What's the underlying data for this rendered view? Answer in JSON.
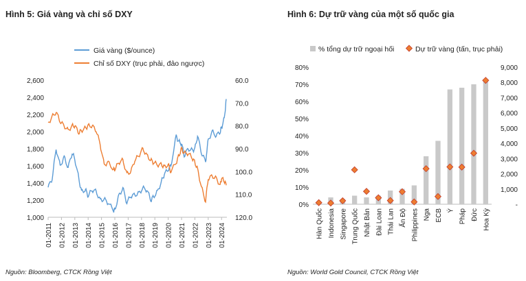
{
  "left_chart": {
    "title": "Hình 5: Giá vàng và chỉ số DXY",
    "source": "Nguồn: Bloomberg, CTCK Rồng Việt"
  },
  "right_chart": {
    "title": "Hình 6: Dự trữ vàng của một số quốc gia",
    "source": "Nguồn: World Gold Council, CTCK Rồng Việt"
  },
  "chart_data": [
    {
      "type": "line",
      "title": "Hình 5: Giá vàng và chỉ số DXY",
      "x_ticks": [
        "01-2011",
        "01-2012",
        "01-2013",
        "01-2014",
        "01-2015",
        "01-2016",
        "01-2017",
        "01-2018",
        "01-2019",
        "01-2020",
        "01-2021",
        "01-2022",
        "01-2023",
        "01-2024"
      ],
      "y_left": {
        "ylim": [
          1000,
          2600
        ],
        "ticks": [
          "2,600",
          "2,400",
          "2,200",
          "2,000",
          "1,800",
          "1,600",
          "1,400",
          "1,200",
          "1,000"
        ]
      },
      "y_right": {
        "ylim": [
          60,
          120
        ],
        "reversed": true,
        "ticks": [
          "60.0",
          "70.0",
          "80.0",
          "90.0",
          "100.0",
          "110.0",
          "120.0"
        ]
      },
      "legend_position": "top-center",
      "series": [
        {
          "name": "Giá vàng ($/ounce)",
          "axis": "left",
          "color": "#5b9bd5",
          "x": [
            2011.0,
            2011.3,
            2011.6,
            2011.9,
            2012.2,
            2012.5,
            2012.8,
            2013.0,
            2013.3,
            2013.5,
            2013.8,
            2014.0,
            2014.3,
            2014.6,
            2014.9,
            2015.2,
            2015.5,
            2015.9,
            2016.0,
            2016.3,
            2016.6,
            2016.9,
            2017.2,
            2017.5,
            2017.8,
            2018.1,
            2018.4,
            2018.7,
            2018.9,
            2019.2,
            2019.5,
            2019.7,
            2020.0,
            2020.2,
            2020.6,
            2020.8,
            2021.0,
            2021.2,
            2021.5,
            2021.8,
            2022.0,
            2022.2,
            2022.5,
            2022.8,
            2023.0,
            2023.3,
            2023.6,
            2023.9,
            2024.0,
            2024.2,
            2024.35
          ],
          "values": [
            1350,
            1450,
            1800,
            1600,
            1700,
            1580,
            1750,
            1680,
            1450,
            1300,
            1320,
            1250,
            1320,
            1300,
            1200,
            1210,
            1170,
            1080,
            1090,
            1250,
            1340,
            1170,
            1250,
            1260,
            1280,
            1340,
            1320,
            1200,
            1240,
            1300,
            1420,
            1500,
            1560,
            1600,
            1950,
            1880,
            1860,
            1720,
            1800,
            1780,
            1800,
            1950,
            1750,
            1650,
            1900,
            2000,
            1950,
            2000,
            2050,
            2150,
            2380
          ]
        },
        {
          "name": "Chỉ số DXY (trục phải, đảo ngược)",
          "axis": "right",
          "color": "#ed7d31",
          "x": [
            2011.0,
            2011.3,
            2011.6,
            2011.9,
            2012.2,
            2012.5,
            2012.8,
            2013.0,
            2013.3,
            2013.5,
            2013.8,
            2014.0,
            2014.3,
            2014.6,
            2014.9,
            2015.2,
            2015.5,
            2015.9,
            2016.0,
            2016.3,
            2016.6,
            2016.9,
            2017.2,
            2017.5,
            2017.8,
            2018.1,
            2018.4,
            2018.7,
            2018.9,
            2019.2,
            2019.5,
            2019.7,
            2020.0,
            2020.2,
            2020.6,
            2020.8,
            2021.0,
            2021.2,
            2021.5,
            2021.8,
            2022.0,
            2022.2,
            2022.5,
            2022.8,
            2023.0,
            2023.3,
            2023.6,
            2023.9,
            2024.0,
            2024.2,
            2024.35
          ],
          "values": [
            79,
            76,
            74,
            78,
            80,
            82,
            80,
            80,
            83,
            82,
            81,
            80,
            80,
            82,
            88,
            97,
            96,
            99,
            99,
            96,
            95,
            101,
            100,
            95,
            93,
            90,
            93,
            95,
            96,
            97,
            97,
            98,
            97,
            100,
            96,
            93,
            90,
            92,
            92,
            94,
            96,
            99,
            107,
            113,
            103,
            102,
            103,
            106,
            103,
            104,
            106
          ]
        }
      ]
    },
    {
      "type": "bar",
      "title": "Hình 6: Dự trữ vàng của một số quốc gia",
      "categories": [
        "Hàn Quốc",
        "Indonesia",
        "Singapore",
        "Trung Quốc",
        "Nhật Bản",
        "Đài Loan",
        "Thái Lan",
        "Ấn Độ",
        "Philippines",
        "Nga",
        "ECB",
        "Ý",
        "Pháp",
        "Đức",
        "Hoa Kỳ"
      ],
      "y_left": {
        "ylim": [
          0,
          80
        ],
        "ticks": [
          "80%",
          "70%",
          "60%",
          "50%",
          "40%",
          "30%",
          "20%",
          "10%",
          "0%"
        ]
      },
      "y_right": {
        "ylim": [
          0,
          9000
        ],
        "ticks": [
          "9,000",
          "8,000",
          "7,000",
          "6,000",
          "5,000",
          "4,000",
          "3,000",
          "2,000",
          "1,000",
          "-"
        ]
      },
      "legend_position": "top",
      "series": [
        {
          "name": "% tổng dự trữ ngoại hối",
          "axis": "left",
          "color": "#c9c9c9",
          "values": [
            1,
            4,
            3,
            5,
            4,
            5,
            8,
            9,
            11,
            28,
            37,
            67,
            68,
            70,
            72
          ]
        },
        {
          "name": "Dự trữ vàng (tấn, trục phải)",
          "axis": "right",
          "color": "#ed7d31",
          "values": [
            104,
            78,
            228,
            2262,
            846,
            424,
            244,
            822,
            153,
            2335,
            507,
            2452,
            2437,
            3352,
            8133
          ]
        }
      ]
    }
  ]
}
